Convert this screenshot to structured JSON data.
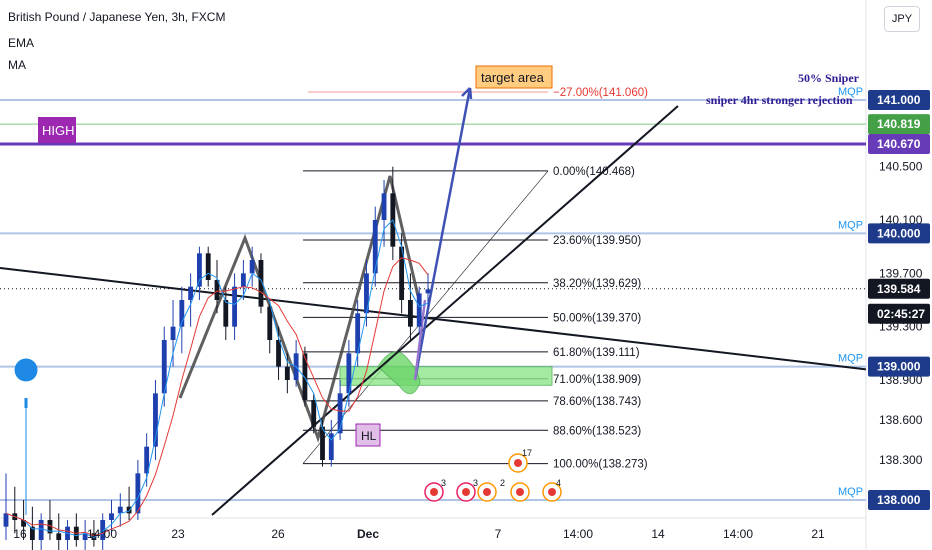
{
  "header": {
    "symbol_title": "British Pound / Japanese Yen, 3h, FXCM",
    "indicator_1": "EMA",
    "indicator_2": "MA",
    "currency_button": "JPY"
  },
  "chart_data": {
    "type": "candlestick",
    "y_axis_ticks": [
      "140.500",
      "140.100",
      "139.700",
      "139.300",
      "138.900",
      "138.600",
      "138.300"
    ],
    "x_axis_ticks": [
      "16",
      "14:00",
      "23",
      "26",
      "Dec",
      "7",
      "14:00",
      "14",
      "14:00",
      "21"
    ],
    "ylim": [
      137.85,
      141.45
    ],
    "price_badges": [
      {
        "label": "141.000",
        "value": 141.0,
        "color": "#1e3a8a"
      },
      {
        "label": "140.819",
        "value": 140.819,
        "color": "#43a047"
      },
      {
        "label": "140.670",
        "value": 140.67,
        "color": "#673ab7"
      },
      {
        "label": "140.000",
        "value": 140.0,
        "color": "#1e3a8a"
      },
      {
        "label": "139.584",
        "value": 139.584,
        "color": "#131722"
      },
      {
        "label": "02:45:27",
        "value": 139.5,
        "color": "#131722"
      },
      {
        "label": "139.000",
        "value": 139.0,
        "color": "#1e3a8a"
      },
      {
        "label": "138.000",
        "value": 138.0,
        "color": "#1e3a8a"
      }
    ],
    "mqp_levels": [
      141.0,
      140.0,
      139.0,
      138.0
    ],
    "mqp_label": "MQP",
    "fib_levels": [
      {
        "label": "−27.00%(141.060)",
        "value": 141.06,
        "color": "#e53935"
      },
      {
        "label": "0.00%(140.468)",
        "value": 140.468,
        "color": "#131722"
      },
      {
        "label": "23.60%(139.950)",
        "value": 139.95,
        "color": "#131722"
      },
      {
        "label": "38.20%(139.629)",
        "value": 139.629,
        "color": "#131722"
      },
      {
        "label": "50.00%(139.370)",
        "value": 139.37,
        "color": "#131722"
      },
      {
        "label": "61.80%(139.111)",
        "value": 139.111,
        "color": "#131722"
      },
      {
        "label": "71.00%(138.909)",
        "value": 138.909,
        "color": "#131722"
      },
      {
        "label": "78.60%(138.743)",
        "value": 138.743,
        "color": "#131722"
      },
      {
        "label": "88.60%(138.523)",
        "value": 138.523,
        "color": "#131722"
      },
      {
        "label": "100.00%(138.273)",
        "value": 138.273,
        "color": "#131722"
      }
    ],
    "annotations": {
      "target_area": "target area",
      "sniper_50": "50% Sniper",
      "sniper_4hr": "sniper 4hr stronger rejection",
      "high": "HIGH",
      "hl": "HL",
      "event_count_1": "3",
      "event_count_2": "3",
      "event_count_3": "2",
      "event_count_4": "4",
      "event_count_5": "17"
    },
    "candles": [
      [
        137.8,
        138.2,
        137.7,
        137.9
      ],
      [
        137.9,
        138.1,
        137.75,
        137.85
      ],
      [
        137.85,
        138.0,
        137.7,
        137.8
      ],
      [
        137.8,
        137.95,
        137.6,
        137.7
      ],
      [
        137.7,
        137.9,
        137.6,
        137.85
      ],
      [
        137.85,
        138.0,
        137.7,
        137.75
      ],
      [
        137.75,
        137.9,
        137.6,
        137.7
      ],
      [
        137.7,
        137.85,
        137.6,
        137.8
      ],
      [
        137.8,
        137.9,
        137.65,
        137.7
      ],
      [
        137.7,
        137.85,
        137.6,
        137.75
      ],
      [
        137.75,
        137.85,
        137.65,
        137.7
      ],
      [
        137.7,
        137.9,
        137.6,
        137.85
      ],
      [
        137.85,
        138.0,
        137.75,
        137.9
      ],
      [
        137.9,
        138.05,
        137.8,
        137.95
      ],
      [
        137.95,
        138.1,
        137.85,
        137.9
      ],
      [
        137.9,
        138.3,
        137.85,
        138.2
      ],
      [
        138.2,
        138.5,
        138.1,
        138.4
      ],
      [
        138.4,
        138.9,
        138.3,
        138.8
      ],
      [
        138.8,
        139.3,
        138.7,
        139.2
      ],
      [
        139.2,
        139.5,
        139.0,
        139.3
      ],
      [
        139.3,
        139.6,
        139.1,
        139.5
      ],
      [
        139.5,
        139.7,
        139.3,
        139.6
      ],
      [
        139.6,
        139.9,
        139.5,
        139.85
      ],
      [
        139.85,
        139.9,
        139.6,
        139.65
      ],
      [
        139.65,
        139.8,
        139.4,
        139.5
      ],
      [
        139.5,
        139.6,
        139.2,
        139.3
      ],
      [
        139.3,
        139.7,
        139.2,
        139.6
      ],
      [
        139.6,
        139.8,
        139.5,
        139.7
      ],
      [
        139.7,
        139.9,
        139.6,
        139.8
      ],
      [
        139.8,
        139.85,
        139.4,
        139.45
      ],
      [
        139.45,
        139.5,
        139.1,
        139.2
      ],
      [
        139.2,
        139.3,
        138.9,
        139.0
      ],
      [
        139.0,
        139.1,
        138.8,
        138.9
      ],
      [
        138.9,
        139.2,
        138.85,
        139.1
      ],
      [
        139.1,
        139.15,
        138.7,
        138.75
      ],
      [
        138.75,
        138.8,
        138.5,
        138.55
      ],
      [
        138.55,
        138.6,
        138.25,
        138.3
      ],
      [
        138.3,
        138.6,
        138.25,
        138.5
      ],
      [
        138.5,
        138.9,
        138.45,
        138.8
      ],
      [
        138.8,
        139.2,
        138.7,
        139.1
      ],
      [
        139.1,
        139.5,
        139.0,
        139.4
      ],
      [
        139.4,
        139.8,
        139.3,
        139.7
      ],
      [
        139.7,
        140.2,
        139.6,
        140.1
      ],
      [
        140.1,
        140.4,
        139.9,
        140.3
      ],
      [
        140.3,
        140.5,
        139.8,
        139.9
      ],
      [
        139.9,
        140.0,
        139.4,
        139.5
      ],
      [
        139.5,
        139.7,
        139.2,
        139.3
      ],
      [
        139.3,
        139.6,
        139.25,
        139.55
      ],
      [
        139.55,
        139.7,
        139.45,
        139.58
      ]
    ]
  }
}
